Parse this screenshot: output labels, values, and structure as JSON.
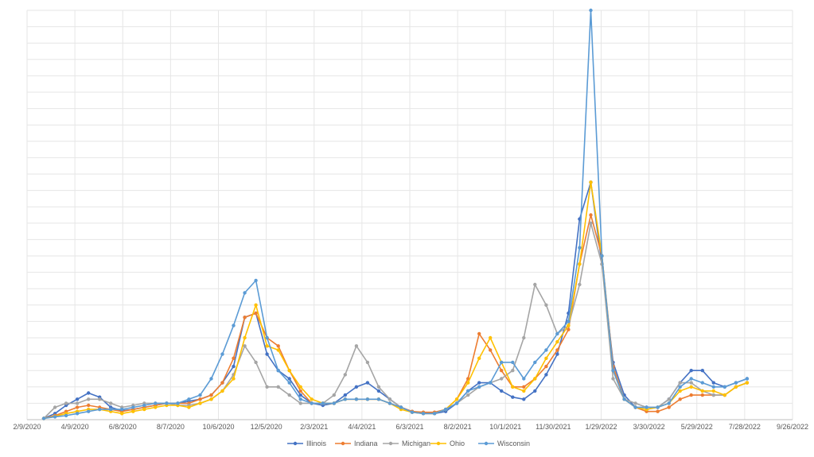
{
  "chart_data": {
    "type": "line",
    "title": "",
    "xlabel": "",
    "ylabel": "",
    "x_ticks": [
      "2/9/2020",
      "4/9/2020",
      "6/8/2020",
      "8/7/2020",
      "10/6/2020",
      "12/5/2020",
      "2/3/2021",
      "4/4/2021",
      "6/3/2021",
      "8/2/2021",
      "10/1/2021",
      "11/30/2021",
      "1/29/2022",
      "3/30/2022",
      "5/29/2022",
      "7/28/2022",
      "9/26/2022"
    ],
    "x_range": [
      "2/9/2020",
      "9/26/2022"
    ],
    "y_range": [
      0,
      100
    ],
    "y_tick_labels_shown": false,
    "grid": {
      "horizontal": true,
      "vertical": true
    },
    "legend_position": "bottom",
    "x": [
      "3/1/2020",
      "3/15/2020",
      "3/29/2020",
      "4/12/2020",
      "4/26/2020",
      "5/10/2020",
      "5/24/2020",
      "6/7/2020",
      "6/21/2020",
      "7/5/2020",
      "7/19/2020",
      "8/2/2020",
      "8/16/2020",
      "8/30/2020",
      "9/13/2020",
      "9/27/2020",
      "10/11/2020",
      "10/25/2020",
      "11/8/2020",
      "11/22/2020",
      "12/6/2020",
      "12/20/2020",
      "1/3/2021",
      "1/17/2021",
      "1/31/2021",
      "2/14/2021",
      "2/28/2021",
      "3/14/2021",
      "3/28/2021",
      "4/11/2021",
      "4/25/2021",
      "5/9/2021",
      "5/23/2021",
      "6/6/2021",
      "6/20/2021",
      "7/4/2021",
      "7/18/2021",
      "8/1/2021",
      "8/15/2021",
      "8/29/2021",
      "9/12/2021",
      "9/26/2021",
      "10/10/2021",
      "10/24/2021",
      "11/7/2021",
      "11/21/2021",
      "12/5/2021",
      "12/19/2021",
      "1/2/2022",
      "1/16/2022",
      "1/30/2022",
      "2/13/2022",
      "2/27/2022",
      "3/13/2022",
      "3/27/2022",
      "4/10/2022",
      "4/24/2022",
      "5/8/2022",
      "5/22/2022",
      "6/5/2022",
      "6/19/2022",
      "7/3/2022",
      "7/17/2022",
      "7/31/2022"
    ],
    "series": [
      {
        "name": "Illinois",
        "color": "#4472c4",
        "values": [
          0.3,
          1.5,
          3.5,
          5,
          6.5,
          5.5,
          3,
          2.2,
          2.5,
          3,
          3.5,
          4,
          4,
          4.5,
          5,
          6,
          9,
          13,
          25,
          26,
          16,
          12,
          10,
          6,
          4,
          3.5,
          4,
          6,
          8,
          9,
          7,
          5,
          3,
          2,
          1.5,
          1.5,
          2,
          4,
          7,
          9,
          9,
          7,
          5.5,
          5,
          7,
          11,
          16,
          26,
          49,
          58,
          38,
          14,
          6,
          3,
          3,
          3,
          5,
          9,
          12,
          12,
          9,
          8,
          9,
          10
        ]
      },
      {
        "name": "Indiana",
        "color": "#ed7d31",
        "values": [
          0.3,
          1,
          2,
          3,
          3.5,
          3,
          2.5,
          2,
          2.5,
          3,
          3.5,
          4,
          4,
          4,
          5,
          6,
          9,
          15,
          25,
          26,
          20,
          18,
          12,
          7,
          4,
          4,
          4,
          5,
          5,
          5,
          5,
          4,
          3,
          2,
          1.8,
          1.8,
          2.5,
          5,
          10,
          21,
          17,
          12,
          8,
          8,
          10,
          13,
          17,
          22,
          38,
          50,
          40,
          13,
          5,
          3,
          2,
          2,
          3,
          5,
          6,
          6,
          6,
          6,
          8,
          9
        ]
      },
      {
        "name": "Michigan",
        "color": "#a5a5a5",
        "values": [
          0.3,
          3,
          4,
          4,
          5,
          5,
          4,
          3,
          3.5,
          4,
          4,
          4,
          3.5,
          3.5,
          4,
          5,
          7,
          11,
          18,
          14,
          8,
          8,
          6,
          4,
          4,
          4,
          6,
          11,
          18,
          14,
          8,
          5,
          3,
          1.8,
          1.5,
          1.5,
          2.5,
          4,
          6,
          8,
          9,
          10,
          12,
          20,
          33,
          28,
          21,
          23,
          33,
          48,
          38,
          10,
          5,
          4,
          3,
          3,
          5,
          9,
          9,
          7,
          6,
          6,
          8,
          9
        ]
      },
      {
        "name": "Ohio",
        "color": "#ffc000",
        "values": [
          0.3,
          0.8,
          1.5,
          2,
          2.5,
          2.5,
          2,
          1.5,
          2,
          2.5,
          3,
          3.5,
          3.5,
          3,
          4,
          5,
          7,
          10,
          20,
          28,
          18,
          17,
          12,
          8,
          5,
          4,
          4,
          5,
          5,
          5,
          5,
          4,
          2.5,
          1.8,
          1.5,
          1.5,
          2.5,
          5,
          9,
          15,
          20,
          14,
          8,
          7,
          10,
          15,
          19,
          23,
          38,
          58,
          40,
          12,
          5,
          3,
          2.5,
          3,
          4,
          7,
          8,
          7,
          7,
          6,
          8,
          9
        ]
      },
      {
        "name": "Wisconsin",
        "color": "#5b9bd5",
        "values": [
          0.3,
          0.7,
          1,
          1.5,
          2,
          2.5,
          2.5,
          2.5,
          3,
          3.5,
          4,
          4,
          4,
          5,
          6,
          10,
          16,
          23,
          31,
          34,
          20,
          12,
          9,
          5,
          4,
          4,
          4,
          5,
          5,
          5,
          5,
          4,
          3,
          1.8,
          1.5,
          1.5,
          2.5,
          4,
          7,
          8,
          9,
          14,
          14,
          10,
          14,
          17,
          21,
          24,
          42,
          100,
          40,
          12,
          5,
          3,
          3,
          3,
          4,
          8,
          10,
          9,
          8,
          8,
          9,
          10
        ]
      }
    ]
  }
}
